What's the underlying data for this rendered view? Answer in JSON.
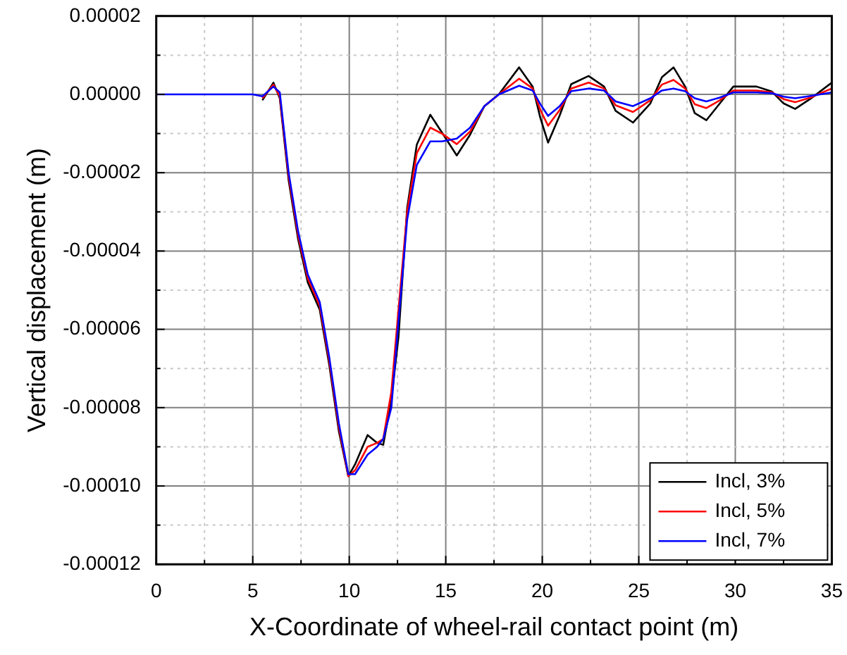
{
  "chart_data": {
    "type": "line",
    "xlabel": "X-Coordinate of wheel-rail contact point (m)",
    "ylabel": "Vertical displacement (m)",
    "x": [
      0,
      5,
      5.5,
      6.07,
      6.4,
      6.86,
      7.35,
      7.85,
      8.47,
      8.96,
      9.46,
      9.95,
      10.3,
      10.95,
      11.44,
      11.76,
      12.18,
      12.55,
      13,
      13.5,
      14.2,
      14.8,
      15.57,
      16.26,
      17,
      17.75,
      18.8,
      19.5,
      19.9,
      20.3,
      20.9,
      21.5,
      22.4,
      23.2,
      23.8,
      24.7,
      25.6,
      26.2,
      26.8,
      27.4,
      27.9,
      28.5,
      29.2,
      29.9,
      31.1,
      31.9,
      32.5,
      33.1,
      33.9,
      35
    ],
    "series": [
      {
        "name": "Incl, 3%",
        "color": "#000000",
        "values": [
          null,
          null,
          -1.5e-06,
          3e-06,
          -1e-06,
          -2.2e-05,
          -3.7e-05,
          -4.8e-05,
          -5.5e-05,
          -6.9e-05,
          -8.6e-05,
          -9.75e-05,
          -9.45e-05,
          -8.7e-05,
          -8.9e-05,
          -8.95e-05,
          -7.8e-05,
          -6.2e-05,
          -2.9e-05,
          -1.28e-05,
          -5.2e-06,
          -9.7e-06,
          -1.56e-05,
          -1.03e-05,
          -3e-06,
          0,
          6.9e-06,
          2e-06,
          -6e-06,
          -1.23e-05,
          -5.4e-06,
          2.6e-06,
          4.7e-06,
          2e-06,
          -4.2e-06,
          -7.2e-06,
          -2.3e-06,
          4.4e-06,
          6.9e-06,
          2e-06,
          -4.8e-06,
          -6.6e-06,
          -2.3e-06,
          2e-06,
          2e-06,
          7e-07,
          -2.3e-06,
          -3.7e-06,
          -1.1e-06,
          3e-06
        ]
      },
      {
        "name": "Incl, 5%",
        "color": "#ff0000",
        "values": [
          null,
          null,
          -1e-06,
          2.5e-06,
          -5e-07,
          -2.1e-05,
          -3.6e-05,
          -4.7e-05,
          -5.4e-05,
          -6.8e-05,
          -8.5e-05,
          -9.75e-05,
          -9.6e-05,
          -9e-05,
          -8.9e-05,
          -8.8e-05,
          -7.6e-05,
          -5.5e-05,
          -3e-05,
          -1.5e-05,
          -8.5e-06,
          -1e-05,
          -1.27e-05,
          -9.5e-06,
          -3e-06,
          0,
          4e-06,
          1.5e-06,
          -4e-06,
          -8e-06,
          -4e-06,
          1.5e-06,
          3e-06,
          1.5e-06,
          -2.8e-06,
          -4.5e-06,
          -1.5e-06,
          2.5e-06,
          3.7e-06,
          1.5e-06,
          -2.5e-06,
          -3.5e-06,
          -1.5e-06,
          1e-06,
          1e-06,
          5e-07,
          -1.2e-06,
          -2e-06,
          -8e-07,
          1.5e-06
        ]
      },
      {
        "name": "Incl, 7%",
        "color": "#0000ff",
        "values": [
          0,
          0,
          -5e-07,
          2e-06,
          5e-07,
          -2e-05,
          -3.5e-05,
          -4.6e-05,
          -5.3e-05,
          -6.7e-05,
          -8.4e-05,
          -9.7e-05,
          -9.7e-05,
          -9.2e-05,
          -9e-05,
          -8.8e-05,
          -8e-05,
          -5.8e-05,
          -3.2e-05,
          -1.8e-05,
          -1.2e-05,
          -1.2e-05,
          -1.13e-05,
          -8.5e-06,
          -3e-06,
          0,
          2.2e-06,
          1e-06,
          -2.5e-06,
          -5.5e-06,
          -3e-06,
          8e-07,
          1.5e-06,
          1e-06,
          -1.8e-06,
          -3e-06,
          -1e-06,
          1e-06,
          1.5e-06,
          8e-07,
          -1e-06,
          -1.8e-06,
          -8e-07,
          5e-07,
          5e-07,
          3e-07,
          -6e-07,
          -1e-06,
          -4e-07,
          5e-07
        ]
      }
    ],
    "xlim": [
      0,
      35
    ],
    "xticks": [
      0,
      {
        "value": 2.5,
        "label": null
      },
      5,
      {
        "value": 7.5,
        "label": null
      },
      10,
      {
        "value": 12.5,
        "label": null
      },
      15,
      {
        "value": 17.5,
        "label": null
      },
      20,
      {
        "value": 22.5,
        "label": null
      },
      25,
      {
        "value": 27.5,
        "label": null
      },
      30,
      {
        "value": 32.5,
        "label": null
      },
      35
    ],
    "ylim": [
      -0.00012,
      2e-05
    ],
    "yticks": [
      {
        "value": -0.00012,
        "label": "-0.00012"
      },
      {
        "value": -0.00011,
        "label": null
      },
      {
        "value": -0.0001,
        "label": "-0.00010"
      },
      {
        "value": -9e-05,
        "label": null
      },
      {
        "value": -8e-05,
        "label": "-0.00008"
      },
      {
        "value": -7e-05,
        "label": null
      },
      {
        "value": -6e-05,
        "label": "-0.00006"
      },
      {
        "value": -5e-05,
        "label": null
      },
      {
        "value": -4e-05,
        "label": "-0.00004"
      },
      {
        "value": -3e-05,
        "label": null
      },
      {
        "value": -2e-05,
        "label": "-0.00002"
      },
      {
        "value": -1e-05,
        "label": null
      },
      {
        "value": 0,
        "label": "0.00000"
      },
      {
        "value": 1e-05,
        "label": null
      },
      {
        "value": 2e-05,
        "label": "0.00002"
      }
    ],
    "grid": true,
    "legend": "bottom right",
    "marker": "none",
    "line_style": "solid"
  }
}
